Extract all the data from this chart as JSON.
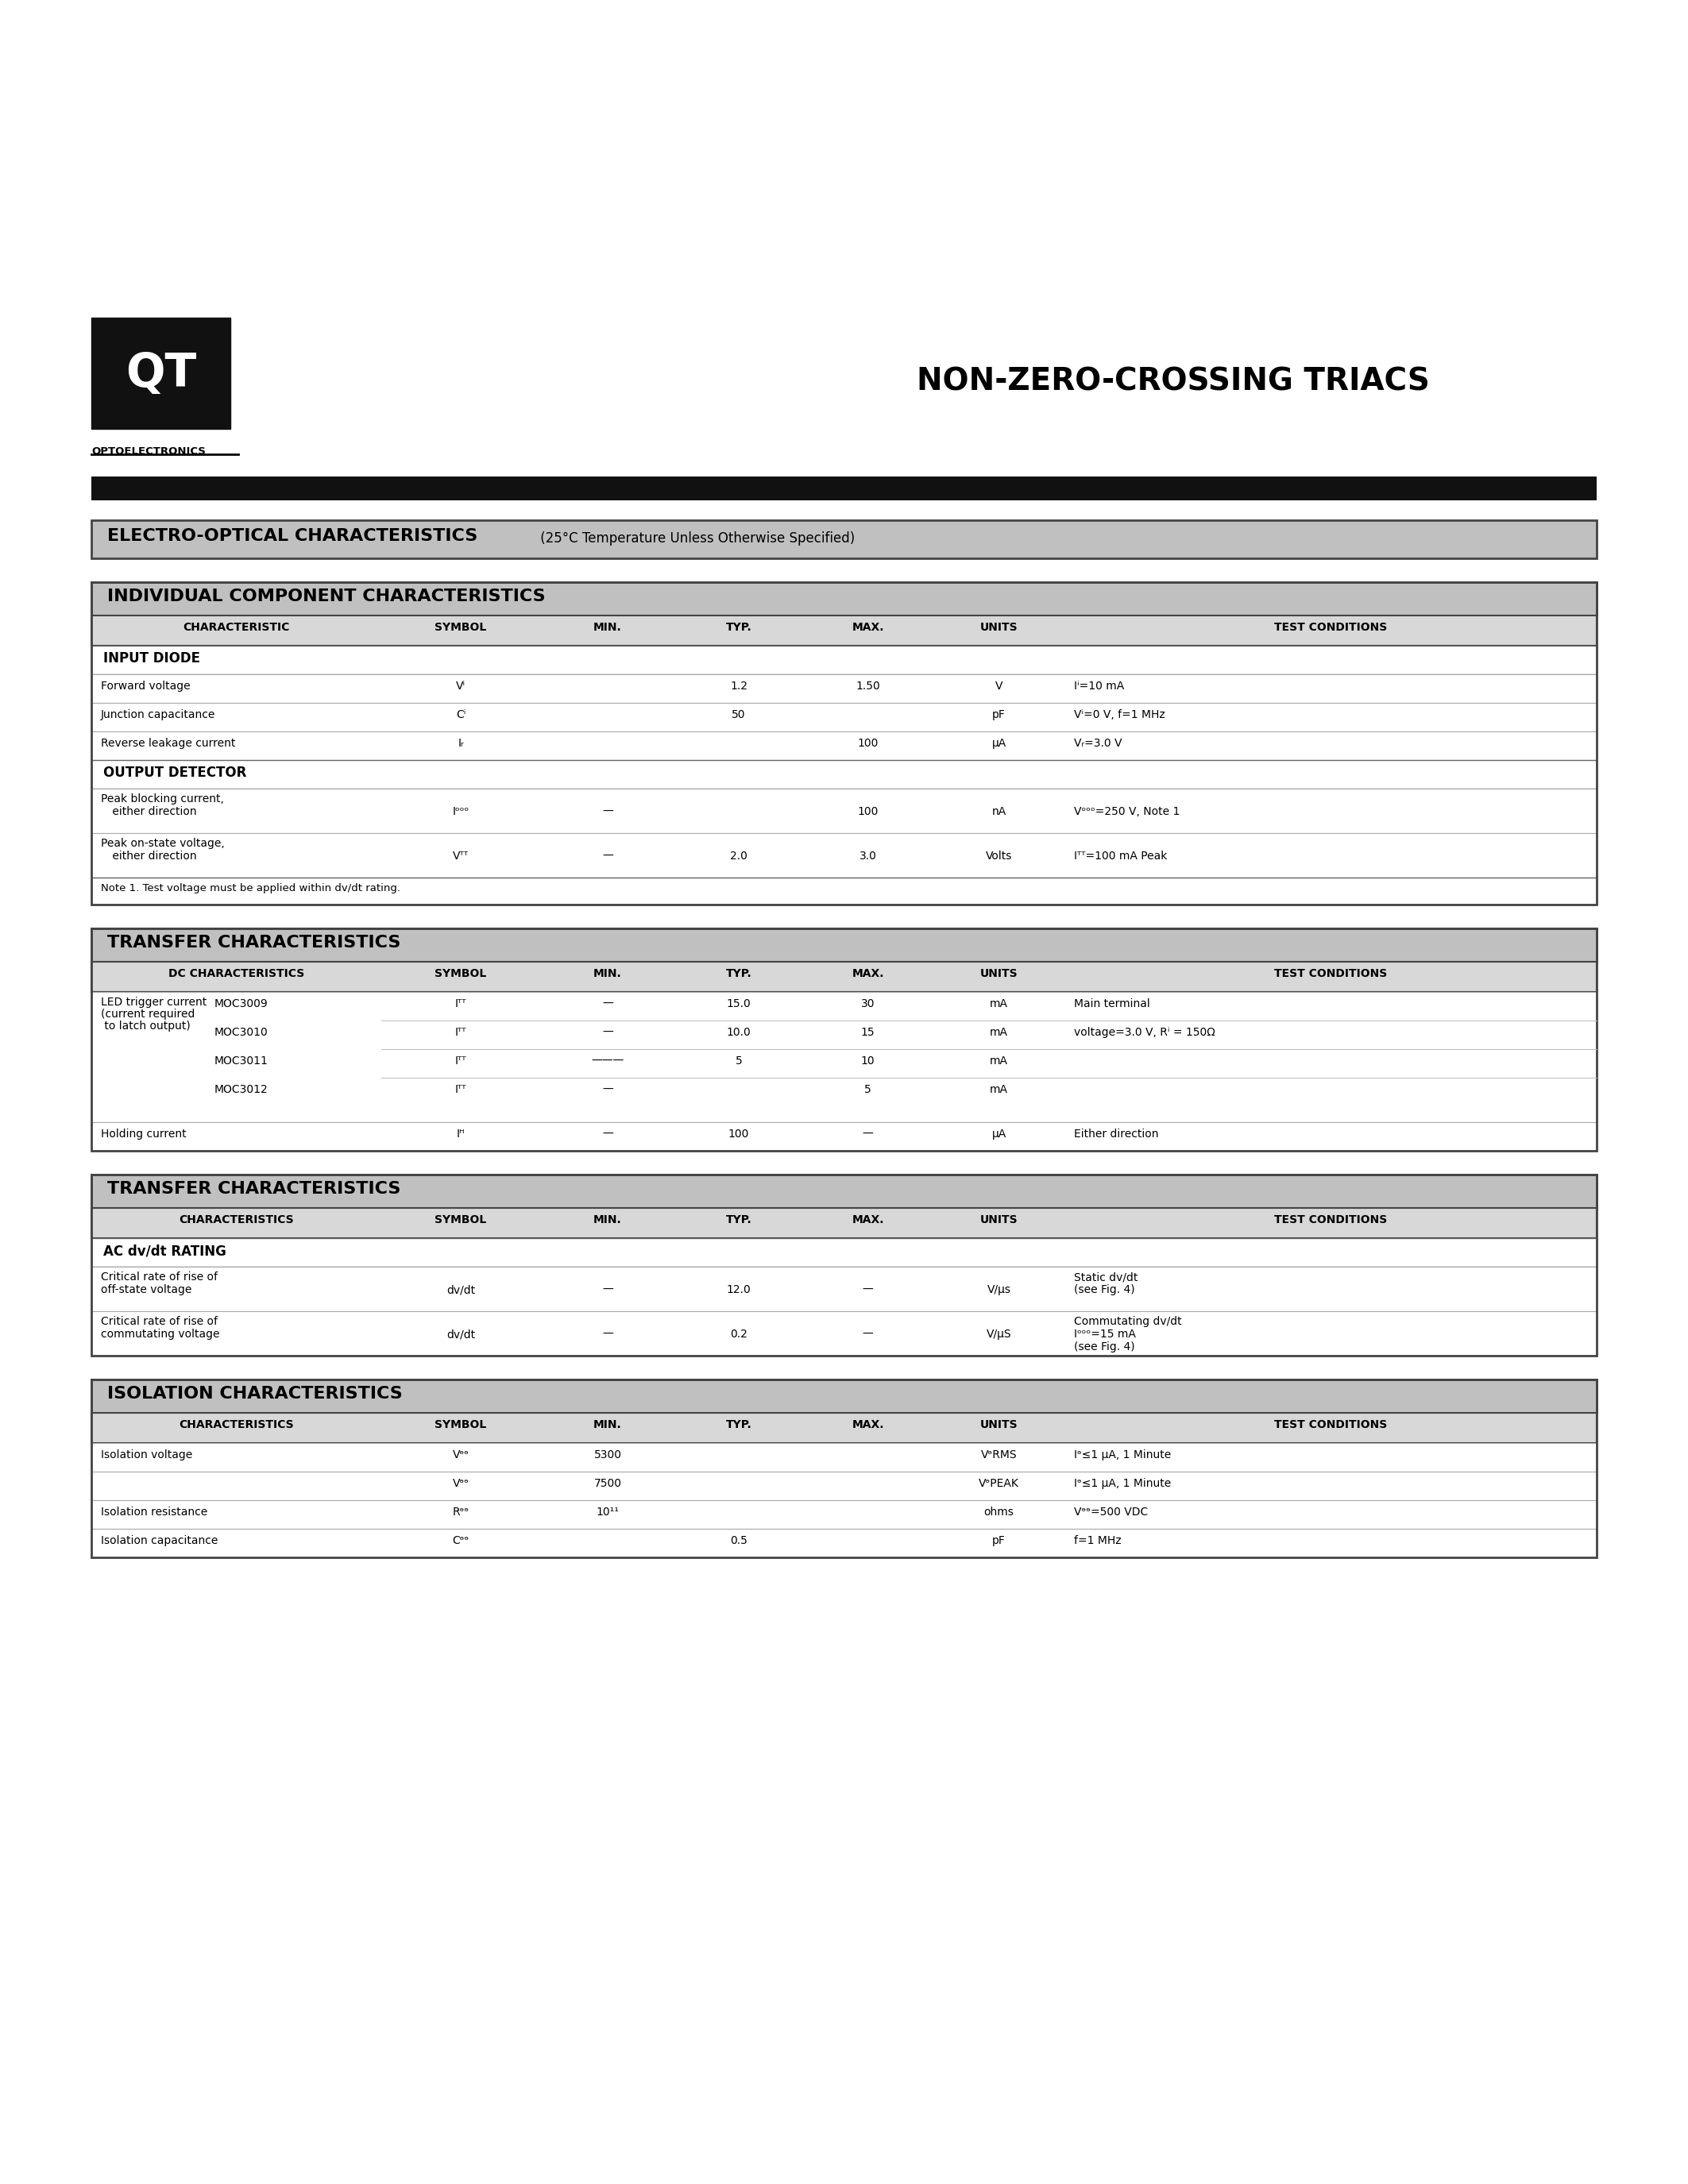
{
  "page_bg": "#ffffff",
  "title": "NON-ZERO-CROSSING TRIACS",
  "section1_col_headers": [
    "CHARACTERISTIC",
    "SYMBOL",
    "MIN.",
    "TYP.",
    "MAX.",
    "UNITS",
    "TEST CONDITIONS"
  ],
  "section2_col_headers": [
    "DC CHARACTERISTICS",
    "SYMBOL",
    "MIN.",
    "TYP.",
    "MAX.",
    "UNITS",
    "TEST CONDITIONS"
  ],
  "section3_col_headers": [
    "CHARACTERISTICS",
    "SYMBOL",
    "MIN.",
    "TYP.",
    "MAX.",
    "UNITS",
    "TEST CONDITIONS"
  ],
  "section4_col_headers": [
    "CHARACTERISTICS",
    "SYMBOL",
    "MIN.",
    "TYP.",
    "MAX.",
    "UNITS",
    "TEST CONDITIONS"
  ]
}
